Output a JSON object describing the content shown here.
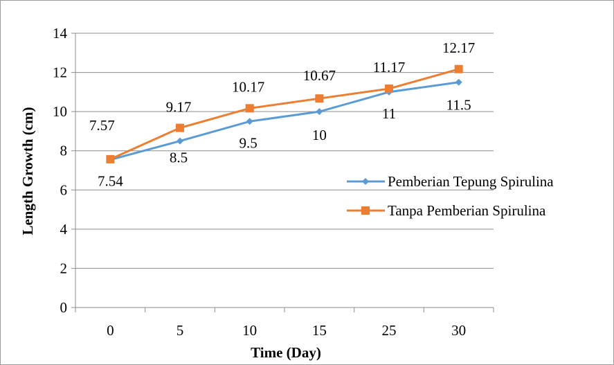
{
  "chart_data": {
    "type": "line",
    "categories": [
      "0",
      "5",
      "10",
      "15",
      "25",
      "30"
    ],
    "xlabel": "Time (Day)",
    "ylabel": "Length Growth (cm)",
    "ylim": [
      0,
      14
    ],
    "yticks": [
      0,
      2,
      4,
      6,
      8,
      10,
      12,
      14
    ],
    "grid": true,
    "legend_position": "right",
    "series": [
      {
        "name": "Pemberian Tepung Spirulina",
        "color": "#5B9BD5",
        "marker": "diamond",
        "values": [
          7.54,
          8.5,
          9.5,
          10,
          11,
          11.5
        ],
        "labels": [
          "7.54",
          "8.5",
          "9.5",
          "10",
          "11",
          "11.5"
        ]
      },
      {
        "name": "Tanpa Pemberian Spirulina",
        "color": "#ED7D31",
        "marker": "square",
        "values": [
          7.57,
          9.17,
          10.17,
          10.67,
          11.17,
          12.17
        ],
        "labels": [
          "7.57",
          "9.17",
          "10.17",
          "10.67",
          "11.17",
          "12.17"
        ]
      }
    ]
  }
}
